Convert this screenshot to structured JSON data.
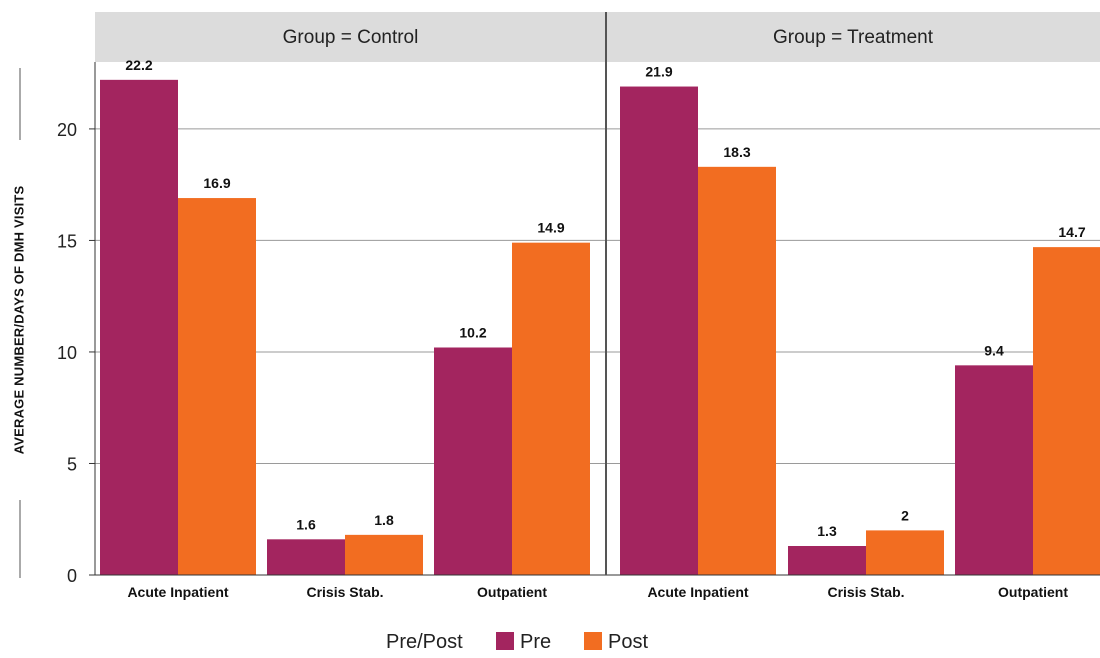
{
  "chart_data": {
    "type": "bar",
    "ylabel": "AVERAGE NUMBER/DAYS OF DMH VISITS",
    "xlabel": "",
    "ylim": [
      0,
      23
    ],
    "yticks": [
      0,
      5,
      10,
      15,
      20
    ],
    "grid": "horizontal",
    "legend": {
      "title": "Pre/Post",
      "position": "bottom",
      "entries": [
        "Pre",
        "Post"
      ]
    },
    "series_colors": {
      "Pre": "#A3255F",
      "Post": "#F26D21"
    },
    "strip_color": "#DCDCDC",
    "panels": [
      {
        "label": "Group = Control",
        "categories": [
          "Acute Inpatient",
          "Crisis Stab.",
          "Outpatient"
        ],
        "series": [
          {
            "name": "Pre",
            "values": [
              22.2,
              1.6,
              10.2
            ]
          },
          {
            "name": "Post",
            "values": [
              16.9,
              1.8,
              14.9
            ]
          }
        ],
        "value_labels": {
          "Pre": [
            "22.2",
            "1.6",
            "10.2"
          ],
          "Post": [
            "16.9",
            "1.8",
            "14.9"
          ]
        }
      },
      {
        "label": "Group = Treatment",
        "categories": [
          "Acute Inpatient",
          "Crisis Stab.",
          "Outpatient"
        ],
        "series": [
          {
            "name": "Pre",
            "values": [
              21.9,
              1.3,
              9.4
            ]
          },
          {
            "name": "Post",
            "values": [
              18.3,
              2,
              14.7
            ]
          }
        ],
        "value_labels": {
          "Pre": [
            "21.9",
            "1.3",
            "9.4"
          ],
          "Post": [
            "18.3",
            "2",
            "14.7"
          ]
        }
      }
    ]
  }
}
